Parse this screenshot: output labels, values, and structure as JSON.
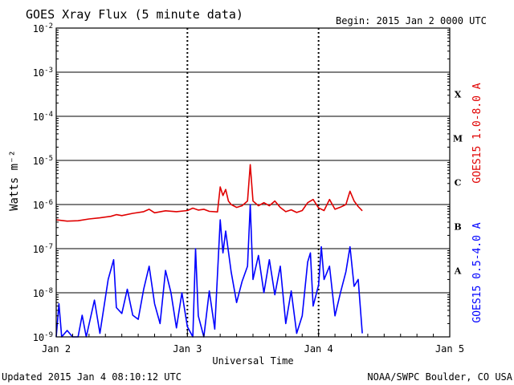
{
  "header": {
    "title": "GOES Xray Flux (5 minute data)",
    "begin": "Begin:  2015 Jan 2 0000 UTC"
  },
  "footer": {
    "updated": "Updated 2015 Jan  4 08:10:12 UTC",
    "credit": "NOAA/SWPC Boulder, CO USA"
  },
  "chart_data": {
    "type": "line",
    "title": "GOES Xray Flux (5 minute data)",
    "xlabel": "Universal Time",
    "ylabel": "Watts m⁻²",
    "yscale": "log",
    "ylim": [
      "1e-9",
      "1e-2"
    ],
    "xlim": [
      "2015-01-02 00:00",
      "2015-01-05 00:00"
    ],
    "grid": true,
    "x_ticks": [
      "Jan 2",
      "Jan 3",
      "Jan 4",
      "Jan 5"
    ],
    "y_ticks": [
      {
        "base": "10",
        "exp": "-2"
      },
      {
        "base": "10",
        "exp": "-3"
      },
      {
        "base": "10",
        "exp": "-4"
      },
      {
        "base": "10",
        "exp": "-5"
      },
      {
        "base": "10",
        "exp": "-6"
      },
      {
        "base": "10",
        "exp": "-7"
      },
      {
        "base": "10",
        "exp": "-8"
      },
      {
        "base": "10",
        "exp": "-9"
      }
    ],
    "flare_classes": [
      "X",
      "M",
      "C",
      "B",
      "A"
    ],
    "series": [
      {
        "name": "GOES15 1.0-8.0 A",
        "color": "#e00000",
        "points": [
          [
            "2015-01-02 00:00",
            "4.5e-7"
          ],
          [
            "2015-01-02 02:00",
            "4.2e-7"
          ],
          [
            "2015-01-02 04:00",
            "4.3e-7"
          ],
          [
            "2015-01-02 06:00",
            "4.7e-7"
          ],
          [
            "2015-01-02 08:00",
            "5.0e-7"
          ],
          [
            "2015-01-02 10:00",
            "5.4e-7"
          ],
          [
            "2015-01-02 11:00",
            "5.9e-7"
          ],
          [
            "2015-01-02 12:00",
            "5.6e-7"
          ],
          [
            "2015-01-02 14:00",
            "6.3e-7"
          ],
          [
            "2015-01-02 16:00",
            "6.9e-7"
          ],
          [
            "2015-01-02 17:00",
            "7.8e-7"
          ],
          [
            "2015-01-02 18:00",
            "6.5e-7"
          ],
          [
            "2015-01-02 20:00",
            "7.2e-7"
          ],
          [
            "2015-01-02 22:00",
            "6.9e-7"
          ],
          [
            "2015-01-03 00:00",
            "7.3e-7"
          ],
          [
            "2015-01-03 01:00",
            "8.3e-7"
          ],
          [
            "2015-01-03 02:00",
            "7.5e-7"
          ],
          [
            "2015-01-03 03:00",
            "7.8e-7"
          ],
          [
            "2015-01-03 04:00",
            "7.0e-7"
          ],
          [
            "2015-01-03 05:30",
            "6.8e-7"
          ],
          [
            "2015-01-03 06:00",
            "2.5e-6"
          ],
          [
            "2015-01-03 06:30",
            "1.6e-6"
          ],
          [
            "2015-01-03 07:00",
            "2.2e-6"
          ],
          [
            "2015-01-03 07:30",
            "1.2e-6"
          ],
          [
            "2015-01-03 08:00",
            "1.0e-6"
          ],
          [
            "2015-01-03 09:00",
            "8.6e-7"
          ],
          [
            "2015-01-03 10:00",
            "9.4e-7"
          ],
          [
            "2015-01-03 11:00",
            "1.2e-6"
          ],
          [
            "2015-01-03 11:30",
            "8.0e-6"
          ],
          [
            "2015-01-03 12:00",
            "1.2e-6"
          ],
          [
            "2015-01-03 13:00",
            "9.4e-7"
          ],
          [
            "2015-01-03 14:00",
            "1.1e-6"
          ],
          [
            "2015-01-03 15:00",
            "9.4e-7"
          ],
          [
            "2015-01-03 16:00",
            "1.2e-6"
          ],
          [
            "2015-01-03 17:00",
            "8.6e-7"
          ],
          [
            "2015-01-03 18:00",
            "6.9e-7"
          ],
          [
            "2015-01-03 19:00",
            "7.6e-7"
          ],
          [
            "2015-01-03 20:00",
            "6.6e-7"
          ],
          [
            "2015-01-03 21:00",
            "7.3e-7"
          ],
          [
            "2015-01-03 22:00",
            "1.1e-6"
          ],
          [
            "2015-01-03 23:00",
            "1.3e-6"
          ],
          [
            "2015-01-04 00:00",
            "8.4e-7"
          ],
          [
            "2015-01-04 01:00",
            "7.3e-7"
          ],
          [
            "2015-01-04 02:00",
            "1.3e-6"
          ],
          [
            "2015-01-04 03:00",
            "7.8e-7"
          ],
          [
            "2015-01-04 04:00",
            "8.7e-7"
          ],
          [
            "2015-01-04 05:00",
            "1.0e-6"
          ],
          [
            "2015-01-04 05:45",
            "2.0e-6"
          ],
          [
            "2015-01-04 06:30",
            "1.2e-6"
          ],
          [
            "2015-01-04 07:15",
            "9.0e-7"
          ],
          [
            "2015-01-04 08:00",
            "7.2e-7"
          ]
        ]
      },
      {
        "name": "GOES15 0.5-4.0 A",
        "color": "#0000ff",
        "points": [
          [
            "2015-01-02 00:00",
            "1e-9"
          ],
          [
            "2015-01-02 00:30",
            "5.6e-9"
          ],
          [
            "2015-01-02 01:00",
            "1e-9"
          ],
          [
            "2015-01-02 02:00",
            "1.4e-9"
          ],
          [
            "2015-01-02 03:00",
            "1e-9"
          ],
          [
            "2015-01-02 04:00",
            "1e-9"
          ],
          [
            "2015-01-02 04:45",
            "3.1e-9"
          ],
          [
            "2015-01-02 05:30",
            "1e-9"
          ],
          [
            "2015-01-02 07:00",
            "6.8e-9"
          ],
          [
            "2015-01-02 08:00",
            "1.2e-9"
          ],
          [
            "2015-01-02 09:30",
            "2.0e-8"
          ],
          [
            "2015-01-02 10:30",
            "5.6e-8"
          ],
          [
            "2015-01-02 11:00",
            "4.6e-9"
          ],
          [
            "2015-01-02 12:00",
            "3.4e-9"
          ],
          [
            "2015-01-02 13:00",
            "1.2e-8"
          ],
          [
            "2015-01-02 14:00",
            "3.1e-9"
          ],
          [
            "2015-01-02 15:00",
            "2.5e-9"
          ],
          [
            "2015-01-02 16:00",
            "1.2e-8"
          ],
          [
            "2015-01-02 17:00",
            "4.0e-8"
          ],
          [
            "2015-01-02 18:00",
            "5.6e-9"
          ],
          [
            "2015-01-02 19:00",
            "2.0e-9"
          ],
          [
            "2015-01-02 20:00",
            "3.2e-8"
          ],
          [
            "2015-01-02 21:00",
            "1.0e-8"
          ],
          [
            "2015-01-02 22:00",
            "1.6e-9"
          ],
          [
            "2015-01-02 23:00",
            "1.0e-8"
          ],
          [
            "2015-01-03 00:00",
            "1.7e-9"
          ],
          [
            "2015-01-03 01:00",
            "1e-9"
          ],
          [
            "2015-01-03 01:30",
            "1e-7"
          ],
          [
            "2015-01-03 02:00",
            "3.0e-9"
          ],
          [
            "2015-01-03 03:00",
            "1e-9"
          ],
          [
            "2015-01-03 04:00",
            "1.1e-8"
          ],
          [
            "2015-01-03 05:00",
            "1.5e-9"
          ],
          [
            "2015-01-03 06:00",
            "4.5e-7"
          ],
          [
            "2015-01-03 06:30",
            "8.0e-8"
          ],
          [
            "2015-01-03 07:00",
            "2.5e-7"
          ],
          [
            "2015-01-03 08:00",
            "3.0e-8"
          ],
          [
            "2015-01-03 09:00",
            "6.0e-9"
          ],
          [
            "2015-01-03 10:00",
            "1.8e-8"
          ],
          [
            "2015-01-03 11:00",
            "4.0e-8"
          ],
          [
            "2015-01-03 11:30",
            "1e-6"
          ],
          [
            "2015-01-03 12:00",
            "2.0e-8"
          ],
          [
            "2015-01-03 13:00",
            "7.0e-8"
          ],
          [
            "2015-01-03 14:00",
            "1.0e-8"
          ],
          [
            "2015-01-03 15:00",
            "5.6e-8"
          ],
          [
            "2015-01-03 16:00",
            "9.0e-9"
          ],
          [
            "2015-01-03 17:00",
            "4.0e-8"
          ],
          [
            "2015-01-03 18:00",
            "2.0e-9"
          ],
          [
            "2015-01-03 19:00",
            "1.1e-8"
          ],
          [
            "2015-01-03 20:00",
            "1.2e-9"
          ],
          [
            "2015-01-03 21:00",
            "3.0e-9"
          ],
          [
            "2015-01-03 22:00",
            "5.0e-8"
          ],
          [
            "2015-01-03 22:30",
            "8.0e-8"
          ],
          [
            "2015-01-03 23:00",
            "5.0e-9"
          ],
          [
            "2015-01-04 00:00",
            "1.5e-8"
          ],
          [
            "2015-01-04 00:30",
            "1.1e-7"
          ],
          [
            "2015-01-04 01:00",
            "2.0e-8"
          ],
          [
            "2015-01-04 02:00",
            "4.0e-8"
          ],
          [
            "2015-01-04 03:00",
            "3.0e-9"
          ],
          [
            "2015-01-04 04:00",
            "1.0e-8"
          ],
          [
            "2015-01-04 05:00",
            "3.0e-8"
          ],
          [
            "2015-01-04 05:45",
            "1.1e-7"
          ],
          [
            "2015-01-04 06:30",
            "1.4e-8"
          ],
          [
            "2015-01-04 07:15",
            "2.0e-8"
          ],
          [
            "2015-01-04 08:00",
            "1.2e-9"
          ]
        ]
      }
    ]
  }
}
